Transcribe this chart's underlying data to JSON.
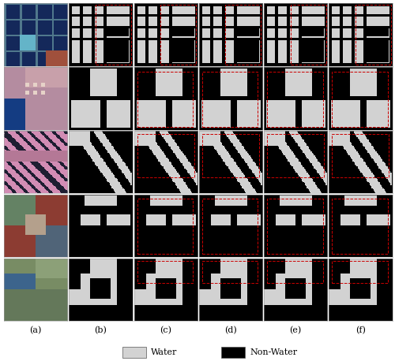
{
  "n_rows": 5,
  "n_cols": 6,
  "col_labels": [
    "(a)",
    "(b)",
    "(c)",
    "(d)",
    "(e)",
    "(f)"
  ],
  "legend_items": [
    {
      "label": "Water",
      "color": "#d3d3d3"
    },
    {
      "label": "Non-Water",
      "color": "#000000"
    }
  ],
  "background_color": "#ffffff",
  "label_fontsize": 8,
  "legend_fontsize": 8,
  "fig_width": 5.0,
  "fig_height": 4.58,
  "border_color": "#888888",
  "red_box_color": "#cc0000",
  "water_gray": 210,
  "nonwater_black": 0
}
